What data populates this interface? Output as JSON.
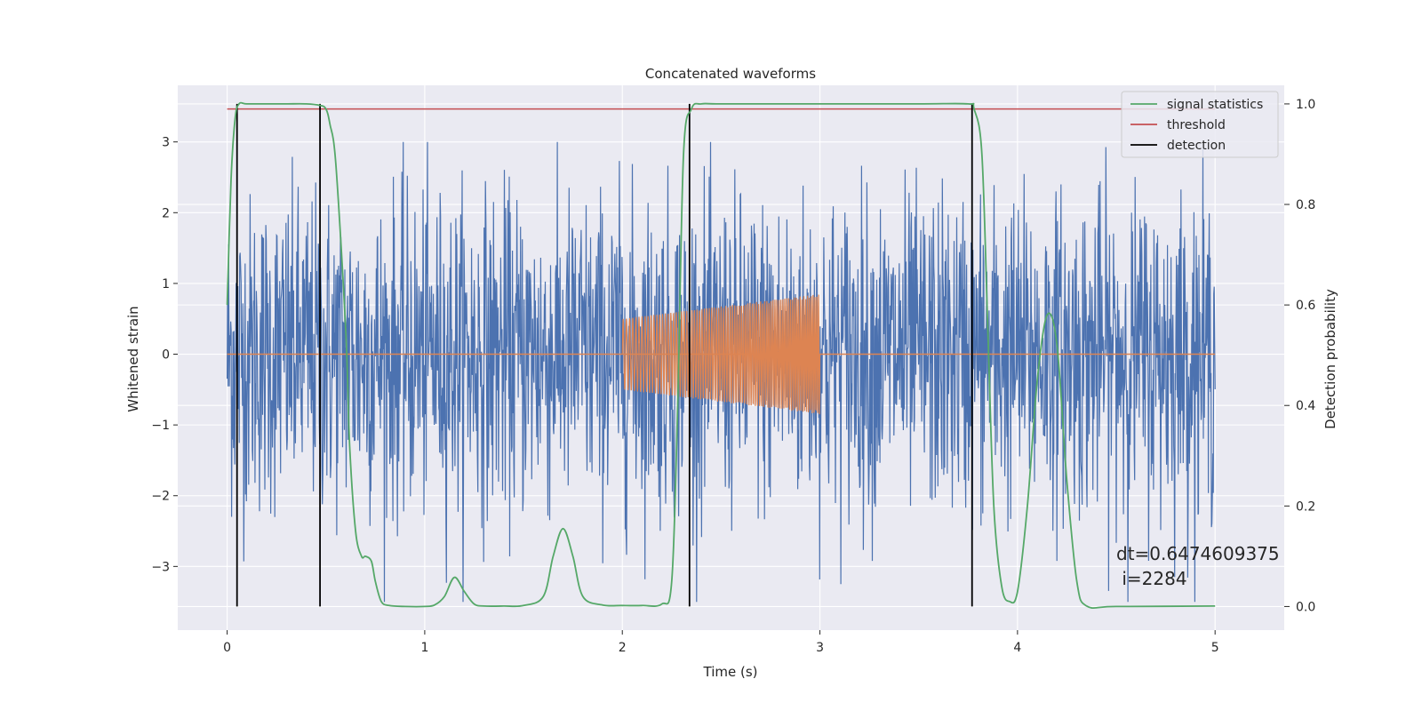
{
  "chart_data": {
    "type": "line",
    "title": "Concatenated waveforms",
    "xlabel": "Time (s)",
    "ylabel": "Whitened strain",
    "ylabel_right": "Detection probability",
    "xlim": [
      -0.25,
      5.35
    ],
    "ylim": [
      -3.9,
      3.8
    ],
    "ylim_right": [
      -0.047,
      1.037
    ],
    "xticks": [
      "0",
      "1",
      "2",
      "3",
      "4",
      "5"
    ],
    "yticks": [
      "3",
      "2",
      "1",
      "0",
      "−1",
      "−2",
      "−3"
    ],
    "yticks_right": [
      "1.0",
      "0.8",
      "0.6",
      "0.4",
      "0.2",
      "0.0"
    ],
    "grid": true,
    "legend_position": "top-right",
    "colors": {
      "strain": "#4c72b0",
      "template": "#dd8452",
      "signal_statistics": "#55a868",
      "threshold": "#c44e52",
      "detection": "#000000",
      "plot_bg": "#eaeaf2",
      "grid": "#ffffff"
    },
    "legend": [
      "signal statistics",
      "threshold",
      "detection"
    ],
    "series": [
      {
        "name": "signal statistics",
        "axis": "right",
        "x": [
          0.0,
          0.02,
          0.04,
          0.06,
          0.1,
          0.2,
          0.3,
          0.4,
          0.47,
          0.5,
          0.52,
          0.55,
          0.6,
          0.62,
          0.65,
          0.68,
          0.7,
          0.73,
          0.75,
          0.78,
          0.82,
          0.9,
          1.0,
          1.05,
          1.1,
          1.15,
          1.2,
          1.25,
          1.3,
          1.4,
          1.5,
          1.6,
          1.65,
          1.7,
          1.75,
          1.8,
          1.9,
          2.0,
          2.1,
          2.2,
          2.25,
          2.28,
          2.31,
          2.35,
          2.4,
          2.5,
          3.0,
          3.5,
          3.75,
          3.78,
          3.82,
          3.85,
          3.88,
          3.92,
          3.96,
          4.0,
          4.05,
          4.1,
          4.15,
          4.2,
          4.25,
          4.3,
          4.35,
          4.5,
          5.0
        ],
        "y": [
          0.6,
          0.85,
          0.97,
          1.0,
          1.0,
          1.0,
          1.0,
          1.0,
          0.997,
          0.99,
          0.96,
          0.88,
          0.55,
          0.32,
          0.15,
          0.1,
          0.1,
          0.09,
          0.05,
          0.01,
          0.002,
          0.0,
          0.0,
          0.003,
          0.02,
          0.058,
          0.03,
          0.005,
          0.001,
          0.001,
          0.002,
          0.02,
          0.1,
          0.155,
          0.1,
          0.02,
          0.003,
          0.002,
          0.002,
          0.005,
          0.05,
          0.4,
          0.9,
          0.99,
          1.0,
          1.0,
          1.0,
          1.0,
          1.0,
          0.99,
          0.9,
          0.55,
          0.2,
          0.04,
          0.01,
          0.03,
          0.2,
          0.45,
          0.58,
          0.52,
          0.25,
          0.05,
          0.001,
          0.0,
          0.001
        ]
      },
      {
        "name": "threshold",
        "axis": "right",
        "x": [
          0.0,
          5.0
        ],
        "y": [
          0.99,
          0.99
        ]
      }
    ],
    "detections_x": [
      0.05,
      0.47,
      2.34,
      3.77
    ],
    "strain_noise": {
      "x_range": [
        0.0,
        5.0
      ],
      "typical_amplitude": 1.8,
      "peak_min": -3.5,
      "peak_max": 3.0
    },
    "template": {
      "x_range": [
        2.0,
        3.0
      ],
      "amplitude_start": 0.5,
      "amplitude_end": 0.85,
      "baseline": 0.0
    },
    "annotation": "dt=0.6474609375\n i=2284",
    "annotation_lines": [
      "dt=0.6474609375",
      " i=2284"
    ]
  }
}
